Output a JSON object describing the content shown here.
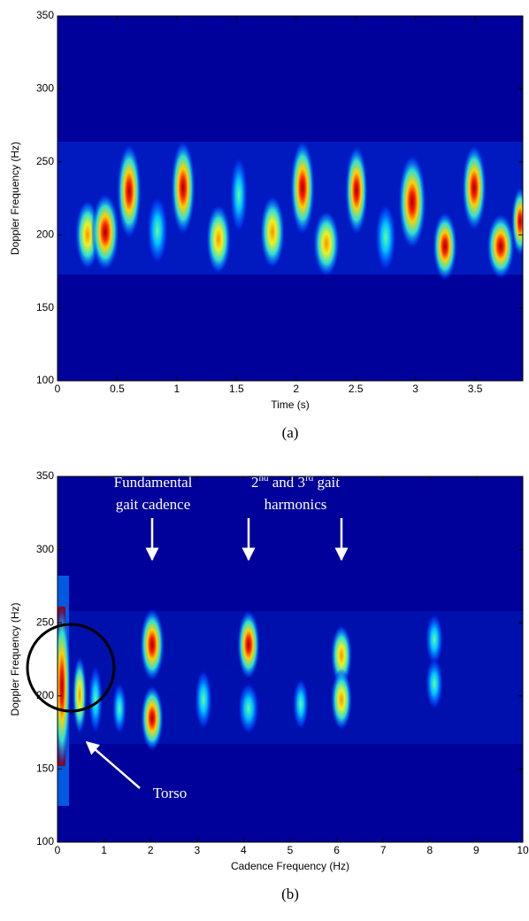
{
  "chart_data": [
    {
      "type": "heatmap",
      "xlabel": "Time (s)",
      "ylabel": "Doppler Frequency (Hz)",
      "caption": "(a)",
      "xlim": [
        0,
        3.9
      ],
      "xticks": [
        0,
        0.5,
        1,
        1.5,
        2,
        2.5,
        3,
        3.5
      ],
      "ylim": [
        100,
        350
      ],
      "yticks": [
        100,
        150,
        200,
        250,
        300,
        350
      ]
    },
    {
      "type": "heatmap",
      "xlabel": "Cadence Frequency (Hz)",
      "ylabel": "Doppler Frequency (Hz)",
      "caption": "(b)",
      "xlim": [
        0,
        10
      ],
      "xticks": [
        0,
        1,
        2,
        3,
        4,
        5,
        6,
        7,
        8,
        9,
        10
      ],
      "ylim": [
        100,
        350
      ],
      "yticks": [
        100,
        150,
        200,
        250,
        300,
        350
      ],
      "annotations": {
        "fundamental": [
          "Fundamental",
          "gait cadence"
        ],
        "harmonics": {
          "line1": [
            "2",
            "nd",
            " and 3",
            "rd",
            " gait"
          ],
          "line2": "harmonics"
        },
        "torso": "Torso"
      }
    }
  ]
}
